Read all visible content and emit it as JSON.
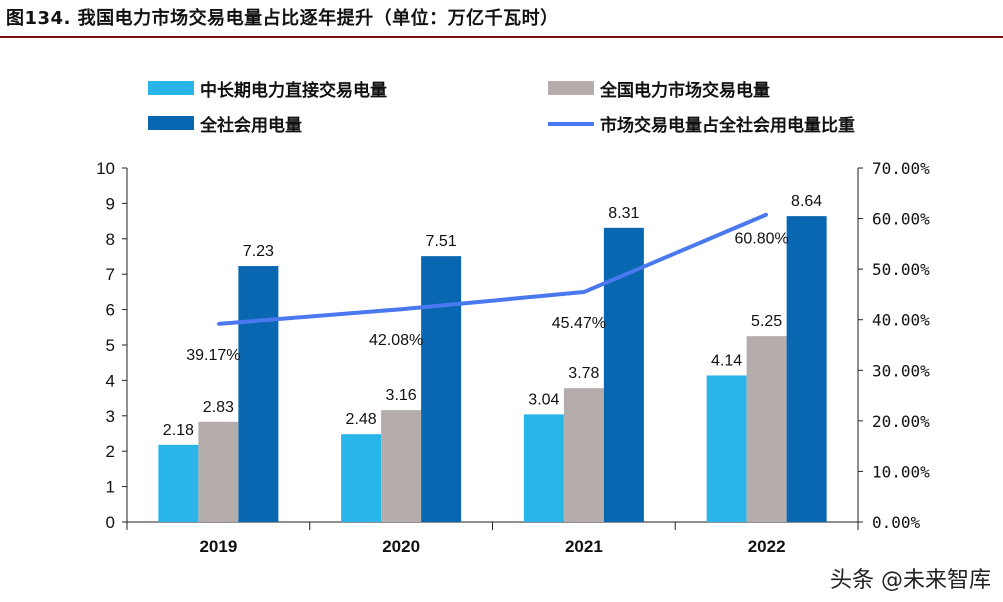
{
  "title": "图134. 我国电力市场交易电量占比逐年提升（单位：万亿千瓦时）",
  "watermark": "头条 @未来智库",
  "chart_data": {
    "type": "bar",
    "categories": [
      "2019",
      "2020",
      "2021",
      "2022"
    ],
    "series": [
      {
        "name": "中长期电力直接交易电量",
        "type": "bar",
        "axis": "left",
        "color": "#29b5e8",
        "values": [
          2.18,
          2.48,
          3.04,
          4.14
        ]
      },
      {
        "name": "全国电力市场交易电量",
        "type": "bar",
        "axis": "left",
        "color": "#b5adac",
        "values": [
          2.83,
          3.16,
          3.78,
          5.25
        ]
      },
      {
        "name": "全社会用电量",
        "type": "bar",
        "axis": "left",
        "color": "#0867b0",
        "values": [
          7.23,
          7.51,
          8.31,
          8.64
        ]
      },
      {
        "name": "市场交易电量占全社会用电量比重",
        "type": "line",
        "axis": "right",
        "color": "#4a78ee",
        "values": [
          39.17,
          42.08,
          45.47,
          60.8
        ],
        "labels": [
          "39.17%",
          "42.08%",
          "45.47%",
          "60.80%"
        ]
      }
    ],
    "bar_labels": [
      [
        "2.18",
        "2.48",
        "3.04",
        "4.14"
      ],
      [
        "2.83",
        "3.16",
        "3.78",
        "5.25"
      ],
      [
        "7.23",
        "7.51",
        "8.31",
        "8.64"
      ]
    ],
    "yleft": {
      "min": 0,
      "max": 10,
      "ticks": [
        "0",
        "1",
        "2",
        "3",
        "4",
        "5",
        "6",
        "7",
        "8",
        "9",
        "10"
      ]
    },
    "yright": {
      "min": 0,
      "max": 70,
      "ticks": [
        "0.00%",
        "10.00%",
        "20.00%",
        "30.00%",
        "40.00%",
        "50.00%",
        "60.00%",
        "70.00%"
      ]
    },
    "legend_position": "top",
    "grid": false
  }
}
